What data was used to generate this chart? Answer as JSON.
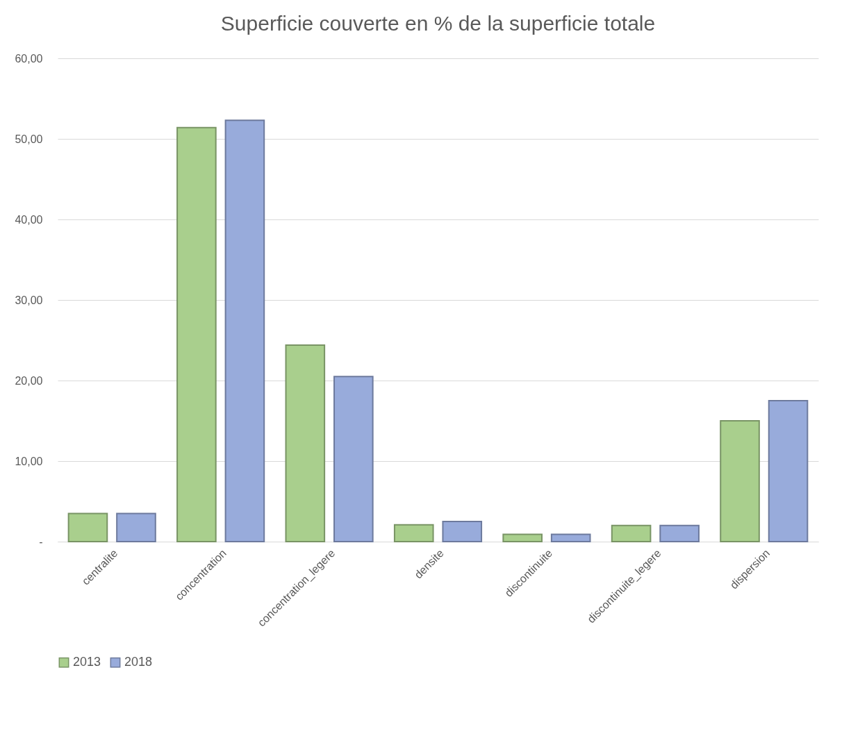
{
  "chart_data": {
    "type": "bar",
    "title": "Superficie couverte en % de la superficie totale",
    "categories": [
      "centralite",
      "concentration",
      "concentration_legere",
      "densite",
      "discontinuite",
      "discontinuite_legere",
      "dispersion"
    ],
    "series": [
      {
        "name": "2013",
        "color": "#a9cf8d",
        "values": [
          3.5,
          51.4,
          24.4,
          2.1,
          0.9,
          2.0,
          15.0
        ]
      },
      {
        "name": "2018",
        "color": "#98abdb",
        "values": [
          3.5,
          52.3,
          20.5,
          2.5,
          0.9,
          2.0,
          17.5
        ]
      }
    ],
    "ylim": [
      0,
      60
    ],
    "yticks": [
      {
        "value": 0,
        "label": "-"
      },
      {
        "value": 10,
        "label": "10,00"
      },
      {
        "value": 20,
        "label": "20,00"
      },
      {
        "value": 30,
        "label": "30,00"
      },
      {
        "value": 40,
        "label": "40,00"
      },
      {
        "value": 50,
        "label": "50,00"
      },
      {
        "value": 60,
        "label": "60,00"
      }
    ],
    "grid": "y",
    "legend": "bottom"
  }
}
